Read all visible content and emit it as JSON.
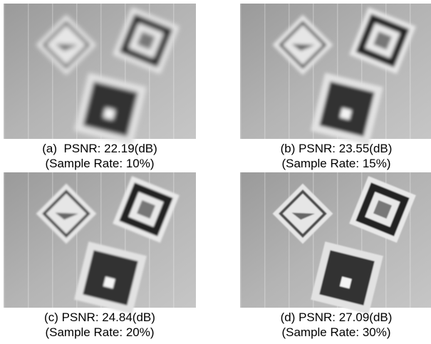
{
  "panels": [
    {
      "caption": "(a)  PSNR: 22.19(dB)",
      "subcaption": "(Sample Rate: 10%)"
    },
    {
      "caption": "(b) PSNR: 23.55(dB)",
      "subcaption": "(Sample Rate: 15%)"
    },
    {
      "caption": "(c) PSNR: 24.84(dB)",
      "subcaption": "(Sample Rate: 20%)"
    },
    {
      "caption": "(d) PSNR: 27.09(dB)",
      "subcaption": "(Sample Rate: 30%)"
    }
  ]
}
